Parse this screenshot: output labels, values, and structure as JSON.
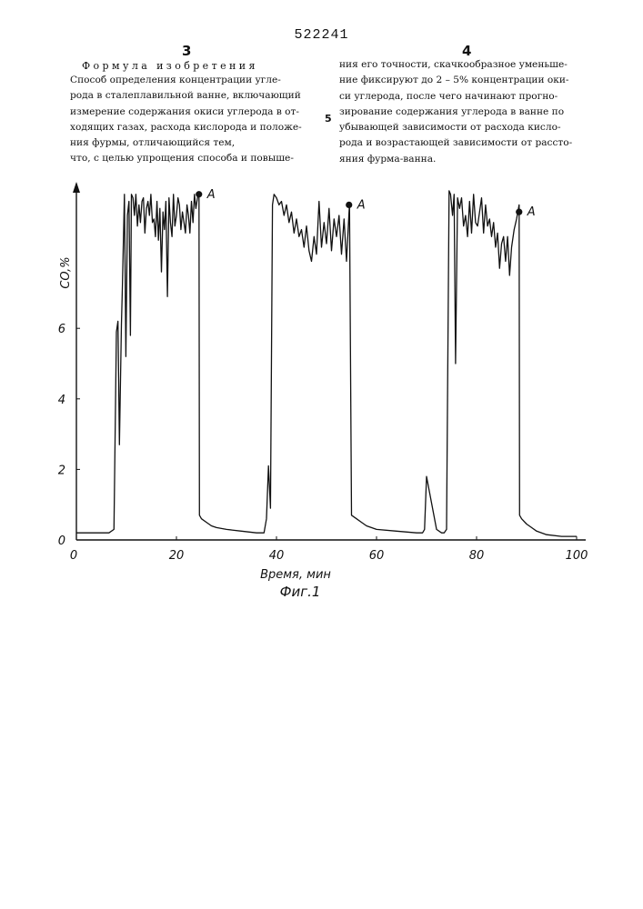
{
  "patent_number": "522241",
  "columns": {
    "left_number": "3",
    "right_number": "4",
    "heading": "Формула изобретения",
    "line_marker": "5",
    "left_lines": [
      "Способ определения концентрации угле-",
      "рода в сталеплавильной ванне, включающий",
      "измерение содержания окиси углерода в от-",
      "ходящих газах, расхода кислорода и положе-",
      "ния фурмы, отличающийся тем,",
      "что, с целью упрощения способа и повыше-"
    ],
    "right_lines": [
      "ния его точности, скачкообразное уменьше-",
      "ние фиксируют до 2 – 5% концентрации оки-",
      "си углерода, после чего начинают прогно-",
      "зирование содержания углерода в ванне по",
      "убывающей зависимости от расхода кисло-",
      "рода и возрастающей зависимости от рассто-",
      "яния фурма-ванна."
    ]
  },
  "figure_caption": "Фиг.1",
  "chart_data": {
    "type": "line",
    "xlabel": "Время, мин",
    "ylabel": "CO,%",
    "xlim": [
      0,
      100
    ],
    "ylim": [
      0,
      10
    ],
    "x_ticks": [
      "0",
      "20",
      "40",
      "60",
      "80",
      "100"
    ],
    "y_ticks": [
      "0",
      "2",
      "4",
      "6"
    ],
    "grid": false,
    "annotations": [
      {
        "label": "A",
        "x": 24.5,
        "y": 9.8
      },
      {
        "label": "A",
        "x": 54.5,
        "y": 9.5
      },
      {
        "label": "A",
        "x": 88.5,
        "y": 9.3
      }
    ],
    "series": [
      {
        "x": [
          0,
          6.5,
          7.5,
          8.0,
          8.3,
          8.6,
          9.0,
          9.2,
          9.6,
          9.9,
          10.2,
          10.5,
          10.8,
          11.0,
          11.3,
          11.6,
          11.9,
          12.2,
          12.5,
          12.8,
          13.1,
          13.4,
          13.7,
          14.0,
          14.3,
          14.6,
          14.9,
          15.2,
          15.5,
          15.8,
          16.1,
          16.4,
          16.7,
          17.0,
          17.3,
          17.6,
          17.9,
          18.2,
          18.5,
          18.8,
          19.1,
          19.4,
          19.7,
          20.0,
          20.3,
          20.6,
          20.9,
          21.2,
          21.5,
          21.8,
          22.1,
          22.4,
          22.7,
          23.0,
          23.3,
          23.6,
          23.9,
          24.2,
          24.5,
          24.6,
          25.0,
          26.0,
          27.0,
          28.0,
          30.0,
          33.0,
          36.0,
          37.5,
          38.0,
          38.4,
          38.8,
          39.2,
          39.5,
          40.0,
          40.5,
          41.0,
          41.5,
          42.0,
          42.5,
          43.0,
          43.5,
          44.0,
          44.5,
          45.0,
          45.5,
          46.0,
          46.5,
          47.0,
          47.5,
          48.0,
          48.5,
          49.0,
          49.5,
          50.0,
          50.5,
          51.0,
          51.5,
          52.0,
          52.5,
          53.0,
          53.5,
          54.0,
          54.5,
          54.6,
          55.0,
          56.0,
          57.0,
          58.0,
          60.0,
          64.0,
          68.0,
          68.8,
          69.2,
          69.6,
          70.0,
          72.0,
          73.0,
          73.5,
          74.0,
          74.5,
          74.8,
          75.2,
          75.5,
          75.8,
          76.2,
          76.6,
          77.0,
          77.4,
          77.8,
          78.2,
          78.6,
          79.0,
          79.4,
          79.8,
          80.2,
          80.6,
          81.0,
          81.4,
          81.8,
          82.2,
          82.6,
          83.0,
          83.4,
          83.8,
          84.2,
          84.6,
          85.0,
          85.4,
          85.8,
          86.2,
          86.6,
          87.0,
          87.5,
          88.0,
          88.5,
          88.6,
          89.0,
          90.0,
          91.0,
          92.0,
          94.0,
          97.0,
          100.0
        ],
        "y": [
          0.2,
          0.2,
          0.3,
          5.9,
          6.2,
          2.7,
          6.1,
          7.2,
          9.8,
          5.2,
          9.2,
          9.6,
          5.8,
          9.8,
          9.7,
          9.2,
          9.8,
          8.9,
          9.5,
          9.0,
          9.6,
          9.7,
          8.7,
          9.4,
          9.6,
          9.2,
          9.8,
          9.0,
          9.1,
          8.6,
          9.6,
          8.5,
          9.4,
          7.6,
          9.3,
          8.8,
          9.6,
          6.9,
          9.7,
          9.0,
          8.6,
          9.8,
          8.9,
          9.2,
          9.7,
          9.5,
          8.8,
          9.3,
          9.0,
          8.7,
          9.5,
          9.2,
          8.7,
          9.6,
          9.0,
          9.8,
          9.4,
          9.7,
          9.8,
          0.7,
          0.6,
          0.5,
          0.4,
          0.35,
          0.3,
          0.25,
          0.2,
          0.2,
          0.6,
          2.1,
          0.9,
          9.5,
          9.8,
          9.7,
          9.5,
          9.6,
          9.2,
          9.5,
          9.0,
          9.3,
          8.7,
          9.1,
          8.6,
          8.8,
          8.3,
          8.9,
          8.2,
          7.9,
          8.6,
          8.1,
          9.6,
          8.3,
          9.0,
          8.4,
          9.4,
          8.2,
          9.1,
          8.6,
          9.2,
          8.1,
          9.1,
          7.9,
          9.3,
          9.5,
          0.7,
          0.6,
          0.5,
          0.4,
          0.3,
          0.25,
          0.2,
          0.2,
          0.2,
          0.3,
          1.8,
          0.3,
          0.2,
          0.2,
          0.3,
          9.9,
          9.8,
          9.2,
          9.8,
          5.0,
          9.7,
          9.4,
          9.7,
          8.9,
          9.2,
          8.6,
          9.6,
          8.7,
          9.8,
          9.0,
          8.9,
          9.3,
          9.7,
          8.7,
          9.5,
          8.9,
          9.1,
          8.6,
          9.0,
          8.3,
          8.7,
          7.7,
          8.4,
          8.6,
          7.9,
          8.6,
          7.5,
          8.3,
          8.8,
          9.1,
          9.5,
          0.7,
          0.6,
          0.45,
          0.35,
          0.25,
          0.15,
          0.1,
          0.1
        ]
      }
    ]
  }
}
